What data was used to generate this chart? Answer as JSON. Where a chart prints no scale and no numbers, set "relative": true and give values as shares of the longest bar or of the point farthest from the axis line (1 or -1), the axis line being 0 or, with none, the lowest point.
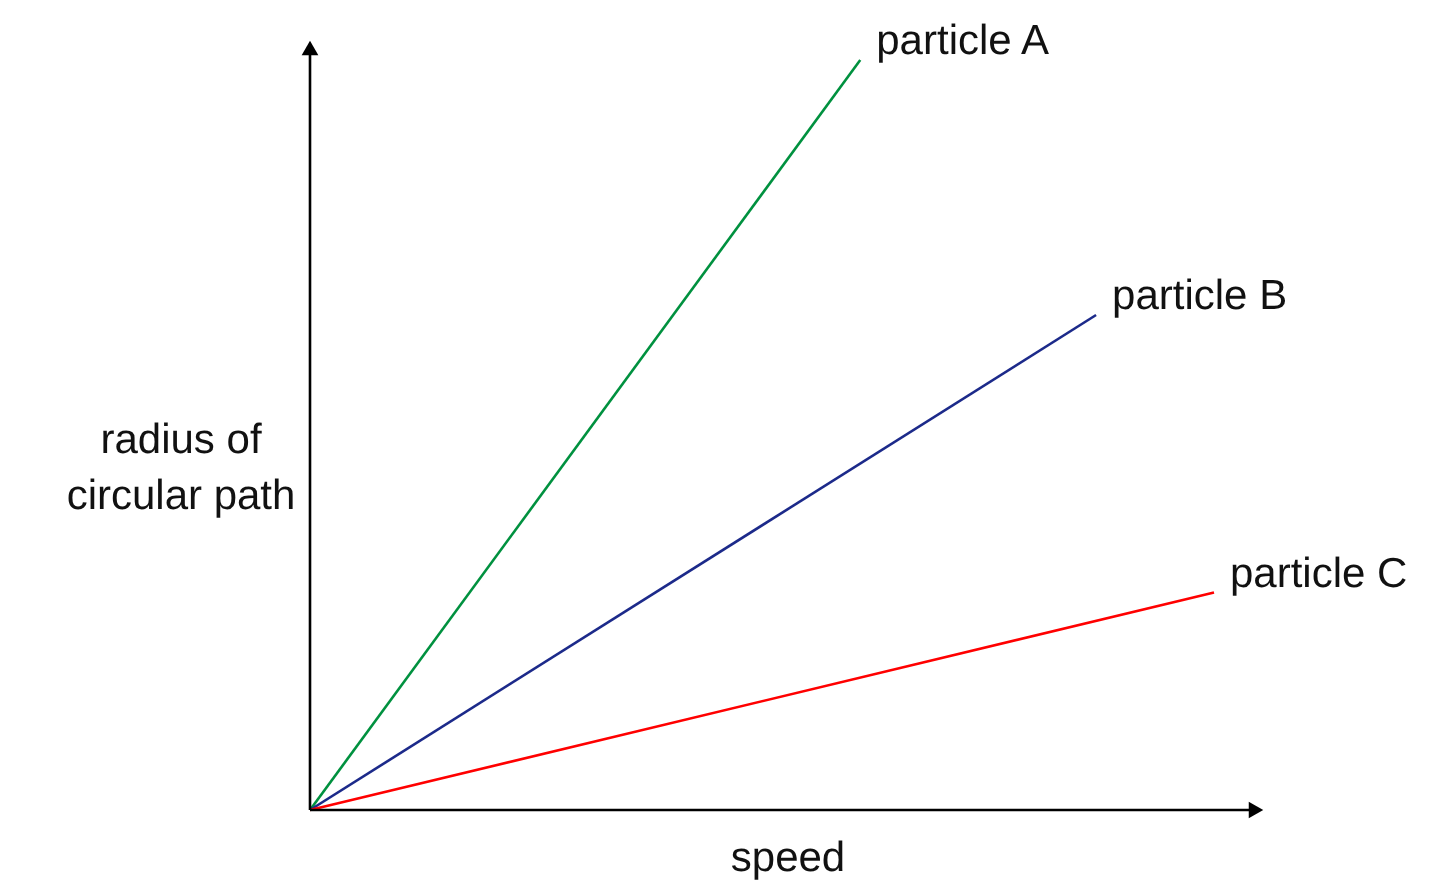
{
  "chart_data": {
    "type": "line",
    "relative": true,
    "xlabel": "speed",
    "ylabel": "radius of\ncircular path",
    "grid": false,
    "marker": "none",
    "line_style": "solid",
    "categories": [
      null,
      null,
      null,
      null,
      null,
      null,
      null,
      null,
      null,
      null,
      null,
      null,
      null,
      null,
      null,
      null,
      null,
      null,
      null,
      null,
      null,
      null,
      null,
      null
    ],
    "series": [
      {
        "name": "particle A",
        "color": "#00913f",
        "values": [
          0,
          null,
          null,
          null,
          null,
          null,
          null,
          null,
          null,
          null,
          null,
          null,
          null,
          null,
          1,
          null,
          null,
          null,
          null,
          null,
          null,
          null,
          null,
          null
        ]
      },
      {
        "name": "particle B",
        "color": "#1c2a8a",
        "values": [
          0,
          null,
          null,
          null,
          null,
          null,
          null,
          null,
          null,
          null,
          null,
          null,
          null,
          null,
          null,
          null,
          null,
          null,
          null,
          null,
          0.66,
          null,
          null,
          null
        ]
      },
      {
        "name": "particle C",
        "color": "#ff0000",
        "values": [
          0,
          null,
          null,
          null,
          null,
          null,
          null,
          null,
          null,
          null,
          null,
          null,
          null,
          null,
          null,
          null,
          null,
          null,
          null,
          null,
          null,
          null,
          null,
          0.29
        ]
      }
    ]
  }
}
